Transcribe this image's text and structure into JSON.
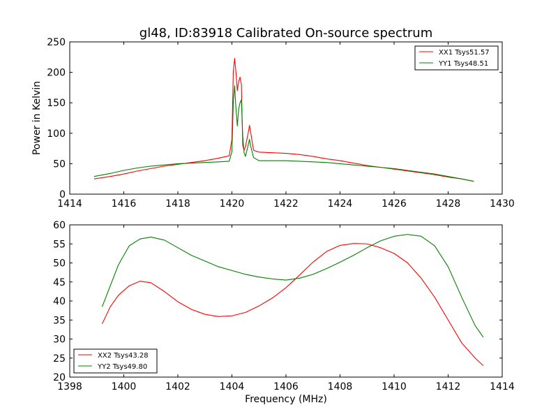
{
  "chart_data": [
    {
      "type": "line",
      "title": "gl48, ID:83918 Calibrated On-source spectrum",
      "xlabel": "",
      "ylabel": "Power in Kelvin",
      "xlim": [
        1414,
        1430
      ],
      "ylim": [
        0,
        250
      ],
      "xticks": [
        1414,
        1416,
        1418,
        1420,
        1422,
        1424,
        1426,
        1428,
        1430
      ],
      "yticks": [
        0,
        50,
        100,
        150,
        200,
        250
      ],
      "legend_position": "top-right",
      "grid": false,
      "series": [
        {
          "name": "XX1 Tsys51.57",
          "color": "#ff0000",
          "x": [
            1414.9,
            1415.5,
            1416.0,
            1416.5,
            1417.0,
            1417.5,
            1418.0,
            1418.5,
            1419.0,
            1419.5,
            1419.9,
            1420.0,
            1420.05,
            1420.1,
            1420.15,
            1420.2,
            1420.25,
            1420.3,
            1420.35,
            1420.4,
            1420.45,
            1420.5,
            1420.6,
            1420.65,
            1420.7,
            1420.8,
            1421.0,
            1421.5,
            1422.0,
            1422.5,
            1423.0,
            1423.5,
            1424.0,
            1424.5,
            1425.0,
            1425.5,
            1426.0,
            1426.5,
            1427.0,
            1427.5,
            1428.0,
            1428.5,
            1428.95
          ],
          "y": [
            25,
            29,
            33,
            38,
            42,
            46,
            49,
            52,
            55,
            59,
            63,
            90,
            200,
            223,
            200,
            170,
            185,
            192,
            180,
            80,
            72,
            78,
            100,
            113,
            100,
            72,
            69,
            68,
            67,
            65,
            62,
            58,
            55,
            51,
            47,
            44,
            41,
            38,
            35,
            32,
            28,
            25,
            21
          ]
        },
        {
          "name": "YY1 Tsys48.51",
          "color": "#008000",
          "x": [
            1414.9,
            1415.5,
            1416.0,
            1416.5,
            1417.0,
            1417.5,
            1418.0,
            1418.5,
            1419.0,
            1419.5,
            1419.9,
            1420.0,
            1420.05,
            1420.1,
            1420.15,
            1420.2,
            1420.25,
            1420.3,
            1420.35,
            1420.4,
            1420.45,
            1420.5,
            1420.6,
            1420.65,
            1420.7,
            1420.8,
            1421.0,
            1421.5,
            1422.0,
            1422.5,
            1423.0,
            1423.5,
            1424.0,
            1424.5,
            1425.0,
            1425.5,
            1426.0,
            1426.5,
            1427.0,
            1427.5,
            1428.0,
            1428.5,
            1428.95
          ],
          "y": [
            29,
            34,
            39,
            43,
            46,
            48,
            50,
            51,
            52,
            53,
            54,
            70,
            150,
            178,
            140,
            112,
            140,
            150,
            155,
            95,
            68,
            62,
            80,
            90,
            78,
            60,
            55,
            55,
            55,
            54,
            53,
            52,
            50,
            48,
            46,
            44,
            42,
            39,
            36,
            33,
            29,
            25,
            21
          ]
        }
      ]
    },
    {
      "type": "line",
      "title": "",
      "xlabel": "Frequency (MHz)",
      "ylabel": "",
      "xlim": [
        1398,
        1414
      ],
      "ylim": [
        20,
        60
      ],
      "xticks": [
        1398,
        1400,
        1402,
        1404,
        1406,
        1408,
        1410,
        1412,
        1414
      ],
      "yticks": [
        20,
        25,
        30,
        35,
        40,
        45,
        50,
        55,
        60
      ],
      "legend_position": "bottom-left",
      "grid": false,
      "series": [
        {
          "name": "XX2 Tsys43.28",
          "color": "#ff0000",
          "x": [
            1399.2,
            1399.5,
            1399.8,
            1400.2,
            1400.6,
            1401.0,
            1401.5,
            1402.0,
            1402.5,
            1403.0,
            1403.5,
            1404.0,
            1404.5,
            1405.0,
            1405.5,
            1406.0,
            1406.5,
            1407.0,
            1407.5,
            1408.0,
            1408.5,
            1409.0,
            1409.5,
            1410.0,
            1410.5,
            1411.0,
            1411.5,
            1412.0,
            1412.5,
            1413.0,
            1413.3
          ],
          "y": [
            34,
            38.5,
            41.5,
            44,
            45.2,
            44.8,
            42.5,
            39.8,
            37.8,
            36.5,
            35.9,
            36.1,
            37,
            38.7,
            40.8,
            43.5,
            46.8,
            50.2,
            53,
            54.6,
            55.1,
            55,
            54,
            52.5,
            50,
            46,
            41,
            35,
            29,
            25,
            23
          ]
        },
        {
          "name": "YY2 Tsys49.80",
          "color": "#008000",
          "x": [
            1399.2,
            1399.5,
            1399.8,
            1400.2,
            1400.6,
            1401.0,
            1401.5,
            1402.0,
            1402.5,
            1403.0,
            1403.5,
            1404.0,
            1404.5,
            1405.0,
            1405.5,
            1406.0,
            1406.5,
            1407.0,
            1407.5,
            1408.0,
            1408.5,
            1409.0,
            1409.5,
            1410.0,
            1410.5,
            1411.0,
            1411.5,
            1412.0,
            1412.5,
            1413.0,
            1413.3
          ],
          "y": [
            38.5,
            44,
            49.5,
            54.5,
            56.3,
            56.8,
            56,
            54,
            52,
            50.5,
            49,
            48,
            47,
            46.3,
            45.8,
            45.5,
            46,
            47,
            48.5,
            50.2,
            52,
            54,
            55.8,
            57,
            57.5,
            57,
            54.5,
            49,
            41,
            33.5,
            30.5
          ]
        }
      ]
    }
  ]
}
